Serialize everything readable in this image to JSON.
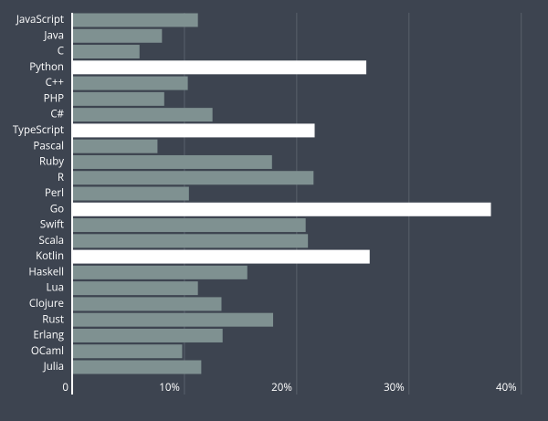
{
  "chart_data": {
    "type": "bar",
    "orientation": "horizontal",
    "categories": [
      "JavaScript",
      "Java",
      "C",
      "Python",
      "C++",
      "PHP",
      "C#",
      "TypeScript",
      "Pascal",
      "Ruby",
      "R",
      "Perl",
      "Go",
      "Swift",
      "Scala",
      "Kotlin",
      "Haskell",
      "Lua",
      "Clojure",
      "Rust",
      "Erlang",
      "OCaml",
      "Julia"
    ],
    "values": [
      11.2,
      8.0,
      6.0,
      26.2,
      10.3,
      8.2,
      12.5,
      21.6,
      7.6,
      17.8,
      21.5,
      10.4,
      37.3,
      20.8,
      21.0,
      26.5,
      15.6,
      11.2,
      13.3,
      17.9,
      13.4,
      9.8,
      11.5
    ],
    "colors": [
      "#7f9191",
      "#7f9191",
      "#7f9191",
      "#ffffff",
      "#7f9191",
      "#7f9191",
      "#7f9191",
      "#ffffff",
      "#7f9191",
      "#7f9191",
      "#7f9191",
      "#7f9191",
      "#ffffff",
      "#7f9191",
      "#7f9191",
      "#ffffff",
      "#7f9191",
      "#7f9191",
      "#7f9191",
      "#7f9191",
      "#7f9191",
      "#7f9191",
      "#7f9191"
    ],
    "xlim": [
      0,
      41
    ],
    "xticks": [
      0,
      {
        "value": 10,
        "label": "10%"
      },
      {
        "value": 20,
        "label": "20%"
      },
      {
        "value": 30,
        "label": "30%"
      },
      {
        "value": 40,
        "label": "40%"
      }
    ],
    "grid": true
  }
}
